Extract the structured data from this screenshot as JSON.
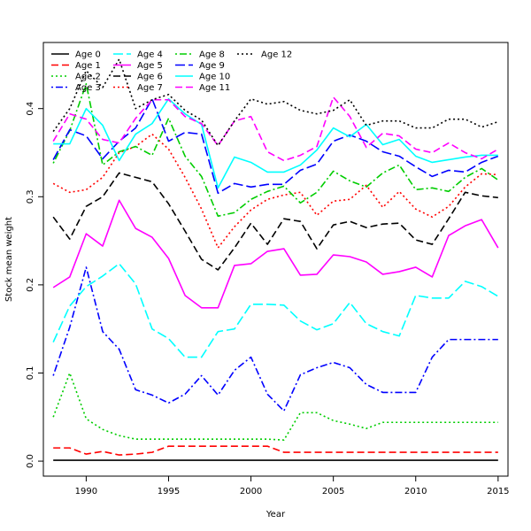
{
  "chart_data": {
    "type": "line",
    "title": "",
    "xlabel": "Year",
    "ylabel": "Stock mean weight",
    "xlim": [
      1987.4,
      2015.6
    ],
    "ylim": [
      -0.017,
      0.475
    ],
    "x": [
      1988,
      1989,
      1990,
      1991,
      1992,
      1993,
      1994,
      1995,
      1996,
      1997,
      1998,
      1999,
      2000,
      2001,
      2002,
      2003,
      2004,
      2005,
      2006,
      2007,
      2008,
      2009,
      2010,
      2011,
      2012,
      2013,
      2014,
      2015
    ],
    "x_ticks": [
      1990,
      1995,
      2000,
      2005,
      2010,
      2015
    ],
    "y_ticks": [
      0.0,
      0.1,
      0.2,
      0.3,
      0.4
    ],
    "y_tick_labels": [
      "0.0",
      "0.1",
      "0.2",
      "0.3",
      "0.4"
    ],
    "grid": false,
    "legend_position": "top-left",
    "series": [
      {
        "name": "Age 0",
        "color": "#000000",
        "dash": "solid",
        "values": [
          0.001,
          0.001,
          0.001,
          0.001,
          0.001,
          0.001,
          0.001,
          0.001,
          0.001,
          0.001,
          0.001,
          0.001,
          0.001,
          0.001,
          0.001,
          0.001,
          0.001,
          0.001,
          0.001,
          0.001,
          0.001,
          0.001,
          0.001,
          0.001,
          0.001,
          0.001,
          0.001,
          0.001
        ]
      },
      {
        "name": "Age 1",
        "color": "#ff0000",
        "dash": "dashed",
        "values": [
          0.015,
          0.015,
          0.008,
          0.011,
          0.007,
          0.008,
          0.01,
          0.017,
          0.017,
          0.017,
          0.017,
          0.017,
          0.017,
          0.017,
          0.01,
          0.01,
          0.01,
          0.01,
          0.01,
          0.01,
          0.01,
          0.01,
          0.01,
          0.01,
          0.01,
          0.01,
          0.01,
          0.01
        ]
      },
      {
        "name": "Age 2",
        "color": "#00cd00",
        "dash": "dotted",
        "values": [
          0.05,
          0.1,
          0.048,
          0.036,
          0.029,
          0.025,
          0.025,
          0.025,
          0.025,
          0.025,
          0.025,
          0.025,
          0.025,
          0.025,
          0.024,
          0.055,
          0.055,
          0.046,
          0.042,
          0.037,
          0.044,
          0.044,
          0.044,
          0.044,
          0.044,
          0.044,
          0.044,
          0.044
        ]
      },
      {
        "name": "Age 3",
        "color": "#0000ff",
        "dash": "dotdash",
        "values": [
          0.097,
          0.152,
          0.22,
          0.147,
          0.127,
          0.081,
          0.075,
          0.066,
          0.076,
          0.097,
          0.075,
          0.103,
          0.118,
          0.076,
          0.057,
          0.098,
          0.106,
          0.112,
          0.106,
          0.087,
          0.078,
          0.078,
          0.078,
          0.118,
          0.138,
          0.138,
          0.138,
          0.138
        ]
      },
      {
        "name": "Age 4",
        "color": "#00ffff",
        "dash": "longdash",
        "values": [
          0.135,
          0.176,
          0.198,
          0.21,
          0.224,
          0.201,
          0.15,
          0.139,
          0.118,
          0.118,
          0.147,
          0.15,
          0.178,
          0.178,
          0.177,
          0.159,
          0.149,
          0.156,
          0.18,
          0.156,
          0.147,
          0.142,
          0.188,
          0.185,
          0.185,
          0.204,
          0.198,
          0.187
        ]
      },
      {
        "name": "Age 5",
        "color": "#ff00ff",
        "dash": "solid",
        "values": [
          0.197,
          0.209,
          0.258,
          0.244,
          0.296,
          0.264,
          0.254,
          0.23,
          0.188,
          0.174,
          0.174,
          0.222,
          0.224,
          0.238,
          0.241,
          0.211,
          0.212,
          0.234,
          0.232,
          0.226,
          0.212,
          0.215,
          0.22,
          0.209,
          0.256,
          0.267,
          0.274,
          0.242
        ]
      },
      {
        "name": "Age 6",
        "color": "#000000",
        "dash": "dashed",
        "values": [
          0.277,
          0.252,
          0.289,
          0.3,
          0.327,
          0.322,
          0.317,
          0.292,
          0.261,
          0.229,
          0.217,
          0.242,
          0.27,
          0.246,
          0.275,
          0.272,
          0.241,
          0.268,
          0.272,
          0.265,
          0.269,
          0.27,
          0.251,
          0.246,
          0.275,
          0.305,
          0.301,
          0.299
        ]
      },
      {
        "name": "Age 7",
        "color": "#ff0000",
        "dash": "dotted",
        "values": [
          0.315,
          0.305,
          0.308,
          0.322,
          0.35,
          0.357,
          0.371,
          0.354,
          0.322,
          0.286,
          0.242,
          0.266,
          0.285,
          0.297,
          0.302,
          0.305,
          0.279,
          0.295,
          0.297,
          0.313,
          0.288,
          0.306,
          0.286,
          0.277,
          0.289,
          0.311,
          0.326,
          0.325
        ]
      },
      {
        "name": "Age 8",
        "color": "#00cd00",
        "dash": "dotdash",
        "values": [
          0.338,
          0.375,
          0.428,
          0.336,
          0.351,
          0.357,
          0.347,
          0.389,
          0.346,
          0.323,
          0.278,
          0.282,
          0.297,
          0.306,
          0.312,
          0.293,
          0.305,
          0.329,
          0.318,
          0.311,
          0.327,
          0.336,
          0.308,
          0.31,
          0.306,
          0.322,
          0.332,
          0.319
        ]
      },
      {
        "name": "Age 9",
        "color": "#0000ff",
        "dash": "longdash",
        "values": [
          0.342,
          0.376,
          0.369,
          0.343,
          0.363,
          0.378,
          0.411,
          0.363,
          0.373,
          0.371,
          0.304,
          0.315,
          0.311,
          0.314,
          0.314,
          0.33,
          0.337,
          0.363,
          0.37,
          0.363,
          0.351,
          0.346,
          0.334,
          0.323,
          0.33,
          0.328,
          0.339,
          0.346
        ]
      },
      {
        "name": "Age 10",
        "color": "#00ffff",
        "dash": "solid",
        "values": [
          0.36,
          0.36,
          0.4,
          0.381,
          0.341,
          0.371,
          0.383,
          0.411,
          0.394,
          0.382,
          0.31,
          0.345,
          0.339,
          0.328,
          0.328,
          0.336,
          0.353,
          0.378,
          0.368,
          0.382,
          0.359,
          0.365,
          0.346,
          0.339,
          0.342,
          0.345,
          0.347,
          0.347
        ]
      },
      {
        "name": "Age 11",
        "color": "#ff00ff",
        "dash": "dashed",
        "values": [
          0.363,
          0.394,
          0.388,
          0.365,
          0.361,
          0.389,
          0.41,
          0.41,
          0.391,
          0.383,
          0.358,
          0.386,
          0.391,
          0.351,
          0.341,
          0.347,
          0.357,
          0.413,
          0.391,
          0.356,
          0.372,
          0.369,
          0.354,
          0.35,
          0.361,
          0.35,
          0.343,
          0.354
        ]
      },
      {
        "name": "Age 12",
        "color": "#000000",
        "dash": "dotted",
        "values": [
          0.374,
          0.4,
          0.443,
          0.424,
          0.456,
          0.4,
          0.41,
          0.416,
          0.398,
          0.387,
          0.358,
          0.386,
          0.411,
          0.405,
          0.408,
          0.398,
          0.394,
          0.398,
          0.41,
          0.381,
          0.386,
          0.386,
          0.378,
          0.378,
          0.388,
          0.388,
          0.379,
          0.385
        ]
      }
    ]
  }
}
